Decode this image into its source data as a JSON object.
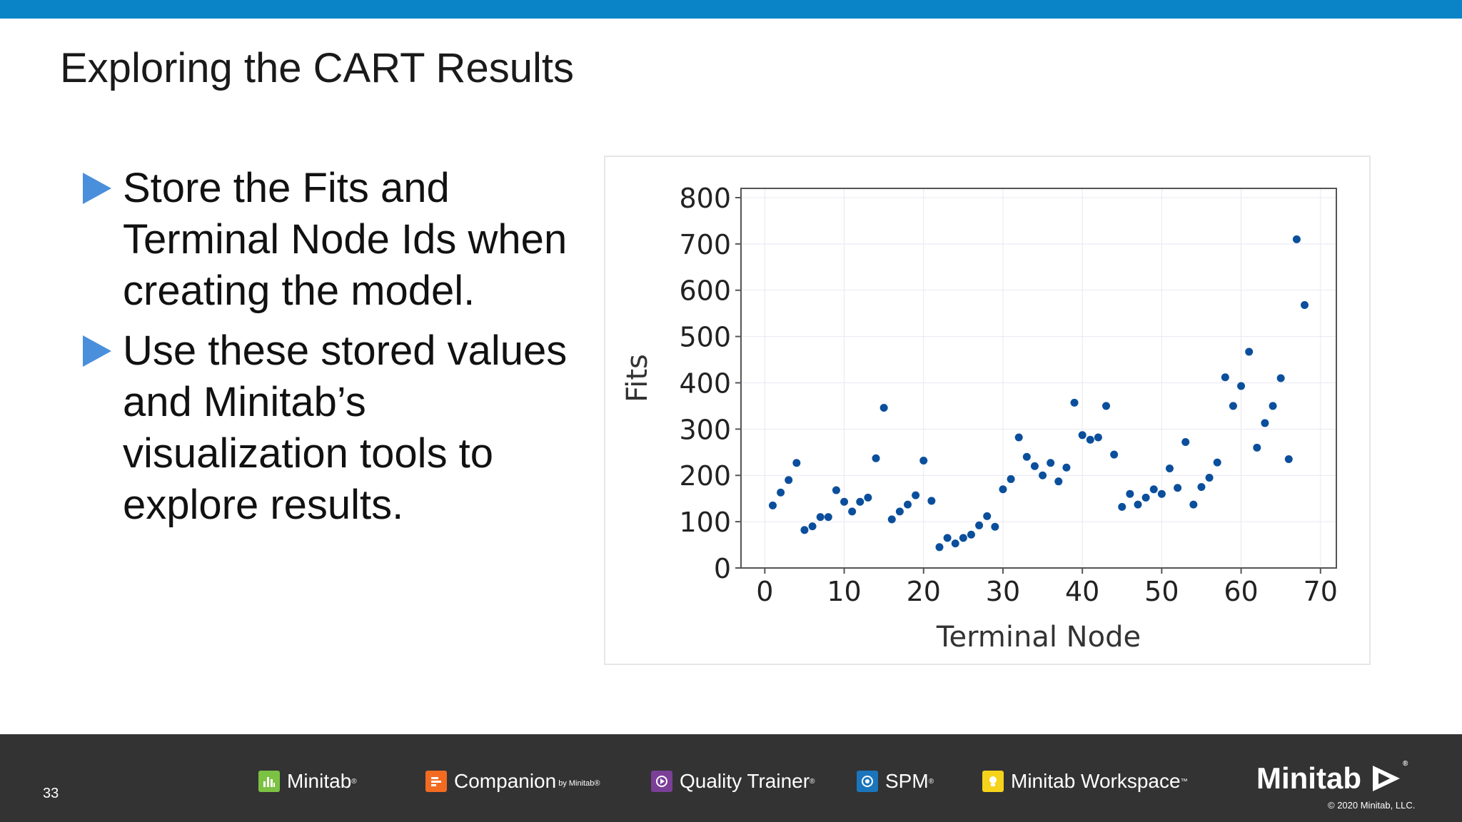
{
  "slide": {
    "title": "Exploring the CART Results",
    "bullets": [
      "Store the Fits and Terminal Node Ids when creating the model.",
      "Use these stored values and Minitab’s visualization tools to explore results."
    ],
    "page_number": "33",
    "accent_color": "#0a84c6",
    "bullet_color": "#4a8fdc"
  },
  "footer": {
    "products": [
      {
        "name": "Minitab",
        "mark": "®",
        "sub": "",
        "icon": "minitab-bars-icon",
        "color": "#7cc242"
      },
      {
        "name": "Companion",
        "mark": "",
        "sub": "by Minitab®",
        "icon": "companion-icon",
        "color": "#f26b21"
      },
      {
        "name": "Quality Trainer",
        "mark": "®",
        "sub": "",
        "icon": "quality-trainer-icon",
        "color": "#7b3f98"
      },
      {
        "name": "SPM",
        "mark": "®",
        "sub": "",
        "icon": "spm-icon",
        "color": "#1b75bc"
      },
      {
        "name": "Minitab Workspace",
        "mark": "™",
        "sub": "",
        "icon": "workspace-icon",
        "color": "#f5d31a"
      }
    ],
    "brand": "Minitab",
    "brand_mark": "®",
    "copyright": "© 2020 Minitab, LLC."
  },
  "chart_data": {
    "type": "scatter",
    "xlabel": "Terminal Node",
    "ylabel": "Fits",
    "xlim": [
      -3,
      72
    ],
    "ylim": [
      0,
      820
    ],
    "xticks": [
      0,
      10,
      20,
      30,
      40,
      50,
      60,
      70
    ],
    "yticks": [
      0,
      100,
      200,
      300,
      400,
      500,
      600,
      700,
      800
    ],
    "grid": true,
    "marker_color": "#0b4f9c",
    "points": [
      [
        1,
        135
      ],
      [
        2,
        163
      ],
      [
        3,
        190
      ],
      [
        4,
        227
      ],
      [
        5,
        82
      ],
      [
        6,
        90
      ],
      [
        7,
        110
      ],
      [
        8,
        110
      ],
      [
        9,
        168
      ],
      [
        10,
        143
      ],
      [
        11,
        122
      ],
      [
        12,
        143
      ],
      [
        13,
        152
      ],
      [
        14,
        237
      ],
      [
        15,
        346
      ],
      [
        16,
        105
      ],
      [
        17,
        122
      ],
      [
        18,
        137
      ],
      [
        19,
        157
      ],
      [
        20,
        232
      ],
      [
        21,
        145
      ],
      [
        22,
        45
      ],
      [
        23,
        65
      ],
      [
        24,
        53
      ],
      [
        25,
        65
      ],
      [
        26,
        72
      ],
      [
        27,
        92
      ],
      [
        28,
        112
      ],
      [
        29,
        89
      ],
      [
        30,
        170
      ],
      [
        31,
        192
      ],
      [
        32,
        282
      ],
      [
        33,
        240
      ],
      [
        34,
        220
      ],
      [
        35,
        200
      ],
      [
        36,
        227
      ],
      [
        37,
        187
      ],
      [
        38,
        217
      ],
      [
        39,
        357
      ],
      [
        40,
        287
      ],
      [
        41,
        277
      ],
      [
        42,
        282
      ],
      [
        43,
        350
      ],
      [
        44,
        245
      ],
      [
        45,
        132
      ],
      [
        46,
        160
      ],
      [
        47,
        137
      ],
      [
        48,
        152
      ],
      [
        49,
        170
      ],
      [
        50,
        160
      ],
      [
        51,
        215
      ],
      [
        52,
        173
      ],
      [
        53,
        272
      ],
      [
        54,
        137
      ],
      [
        55,
        175
      ],
      [
        56,
        195
      ],
      [
        57,
        228
      ],
      [
        58,
        412
      ],
      [
        59,
        350
      ],
      [
        60,
        393
      ],
      [
        61,
        467
      ],
      [
        62,
        260
      ],
      [
        63,
        313
      ],
      [
        64,
        350
      ],
      [
        65,
        410
      ],
      [
        66,
        235
      ],
      [
        67,
        710
      ],
      [
        68,
        568
      ]
    ]
  }
}
